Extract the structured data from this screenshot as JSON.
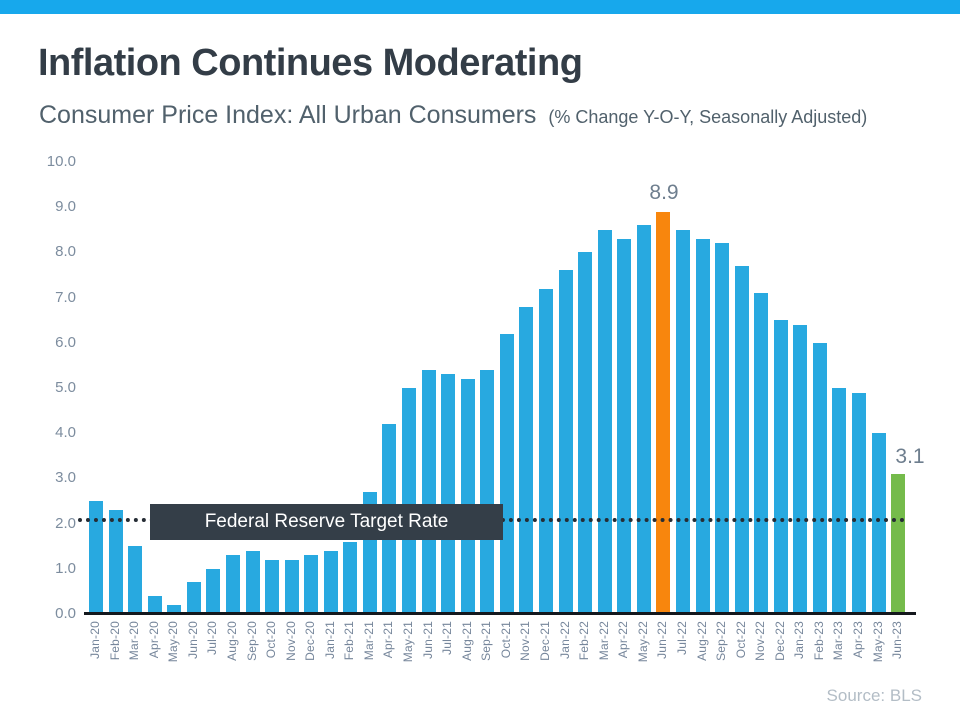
{
  "page": {
    "title": "Inflation Continues Moderating",
    "subtitle": "Consumer Price Index: All Urban Consumers",
    "subtitle_note": "(% Change Y-O-Y, Seasonally Adjusted)",
    "source": "Source: BLS"
  },
  "colors": {
    "banner": "#17a8ec",
    "title_text": "#333d47",
    "subtitle_text": "#51616c",
    "bar": "#28a9e0",
    "bar_peak": "#f8860d",
    "bar_latest": "#75bb4b",
    "dotted_line": "#262d35",
    "target_box_bg": "#343e48",
    "target_box_text": "#ffffff",
    "value_label": "#6e7e8e",
    "axis_label": "#7c8c9e",
    "source_text": "#b3bdc6"
  },
  "chart_data": {
    "type": "bar",
    "title": "Consumer Price Index: All Urban Consumers (% Change Y-O-Y, Seasonally Adjusted)",
    "xlabel": "",
    "ylabel": "",
    "ylim": [
      0,
      10
    ],
    "ytick_step": 1.0,
    "grid": false,
    "legend": false,
    "categories": [
      "Jan-20",
      "Feb-20",
      "Mar-20",
      "Apr-20",
      "May-20",
      "Jun-20",
      "Jul-20",
      "Aug-20",
      "Sep-20",
      "Oct-20",
      "Nov-20",
      "Dec-20",
      "Jan-21",
      "Feb-21",
      "Mar-21",
      "Apr-21",
      "May-21",
      "Jun-21",
      "Jul-21",
      "Aug-21",
      "Sep-21",
      "Oct-21",
      "Nov-21",
      "Dec-21",
      "Jan-22",
      "Feb-22",
      "Mar-22",
      "Apr-22",
      "May-22",
      "Jun-22",
      "Jul-22",
      "Aug-22",
      "Sep-22",
      "Oct-22",
      "Nov-22",
      "Dec-22",
      "Jan-23",
      "Feb-23",
      "Mar-23",
      "Apr-23",
      "May-23",
      "Jun-23"
    ],
    "values": [
      2.5,
      2.3,
      1.5,
      0.4,
      0.2,
      0.7,
      1.0,
      1.3,
      1.4,
      1.2,
      1.2,
      1.3,
      1.4,
      1.6,
      2.7,
      4.2,
      5.0,
      5.4,
      5.3,
      5.2,
      5.4,
      6.2,
      6.8,
      7.2,
      7.6,
      8.0,
      8.5,
      8.3,
      8.6,
      8.9,
      8.5,
      8.3,
      8.2,
      7.7,
      7.1,
      6.5,
      6.4,
      6.0,
      5.0,
      4.9,
      4.0,
      3.1
    ],
    "highlights": {
      "peak": {
        "category": "Jun-22",
        "value": 8.9
      },
      "latest": {
        "category": "Jun-23",
        "value": 3.1
      }
    },
    "reference_line": {
      "value": 2.0,
      "label": "Federal Reserve Target Rate"
    }
  }
}
